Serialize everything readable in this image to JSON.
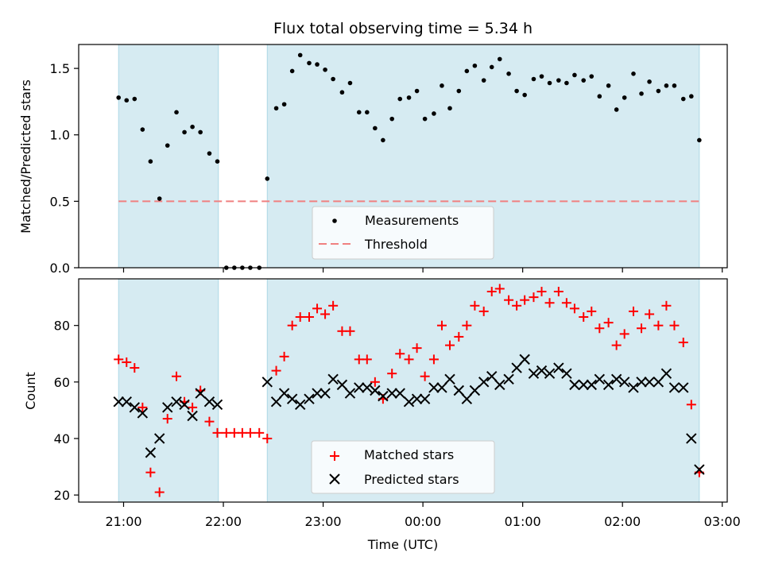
{
  "figure": {
    "title": "Flux total observing time = 5.34 h",
    "xlabel": "Time (UTC)",
    "xtick_labels": [
      "21:00",
      "22:00",
      "23:00",
      "00:00",
      "01:00",
      "02:00",
      "03:00"
    ],
    "colors": {
      "observing_shade": "#add8e6",
      "threshold": "#f08080",
      "matched": "#ff0000",
      "predicted": "#000000",
      "measurements": "#000000"
    }
  },
  "chart_data": [
    {
      "type": "scatter",
      "ylabel": "Matched/Predicted stars",
      "ylim": [
        0,
        1.68
      ],
      "ytick_labels": [
        "0.0",
        "0.5",
        "1.0",
        "1.5"
      ],
      "xlim_hours": [
        20.55,
        27.05
      ],
      "x_axis_note": "hours since 00:00 on first night; 24 = 00:00 next day",
      "shaded_intervals_hours": [
        [
          20.95,
          21.95
        ],
        [
          22.44,
          26.77
        ]
      ],
      "legend_position": "lower-center",
      "threshold": {
        "name": "Threshold",
        "value": 0.5,
        "style": "dashed"
      },
      "series": [
        {
          "name": "Measurements",
          "marker": "dot",
          "x": [
            20.95,
            21.03,
            21.11,
            21.19,
            21.27,
            21.36,
            21.44,
            21.53,
            21.61,
            21.69,
            21.77,
            21.86,
            21.94,
            22.03,
            22.11,
            22.19,
            22.27,
            22.36,
            22.44,
            22.53,
            22.61,
            22.69,
            22.77,
            22.86,
            22.94,
            23.02,
            23.1,
            23.19,
            23.27,
            23.36,
            23.44,
            23.52,
            23.6,
            23.69,
            23.77,
            23.86,
            23.94,
            24.02,
            24.11,
            24.19,
            24.27,
            24.36,
            24.44,
            24.52,
            24.61,
            24.69,
            24.77,
            24.86,
            24.94,
            25.02,
            25.11,
            25.19,
            25.27,
            25.36,
            25.44,
            25.52,
            25.61,
            25.69,
            25.77,
            25.86,
            25.94,
            26.02,
            26.11,
            26.19,
            26.27,
            26.36,
            26.44,
            26.52,
            26.61,
            26.69,
            26.77
          ],
          "y": [
            1.28,
            1.26,
            1.27,
            1.04,
            0.8,
            0.52,
            0.92,
            1.17,
            1.02,
            1.06,
            1.02,
            0.86,
            0.8,
            0.0,
            0.0,
            0.0,
            0.0,
            0.0,
            0.67,
            1.2,
            1.23,
            1.48,
            1.6,
            1.54,
            1.53,
            1.49,
            1.42,
            1.32,
            1.39,
            1.17,
            1.17,
            1.05,
            0.96,
            1.12,
            1.27,
            1.28,
            1.33,
            1.12,
            1.16,
            1.37,
            1.2,
            1.33,
            1.48,
            1.52,
            1.41,
            1.51,
            1.57,
            1.46,
            1.33,
            1.3,
            1.42,
            1.44,
            1.39,
            1.41,
            1.39,
            1.45,
            1.41,
            1.44,
            1.29,
            1.37,
            1.19,
            1.28,
            1.46,
            1.31,
            1.4,
            1.33,
            1.37,
            1.37,
            1.27,
            1.29,
            0.96
          ]
        }
      ]
    },
    {
      "type": "scatter",
      "ylabel": "Count",
      "ylim": [
        17.5,
        96.5
      ],
      "ytick_labels": [
        "20",
        "40",
        "60",
        "80"
      ],
      "xlim_hours": [
        20.55,
        27.05
      ],
      "shaded_intervals_hours": [
        [
          20.95,
          21.95
        ],
        [
          22.44,
          26.77
        ]
      ],
      "legend_position": "lower-center",
      "series": [
        {
          "name": "Matched stars",
          "marker": "plus",
          "x": [
            20.95,
            21.03,
            21.11,
            21.19,
            21.27,
            21.36,
            21.44,
            21.53,
            21.61,
            21.69,
            21.77,
            21.86,
            21.94,
            22.03,
            22.11,
            22.19,
            22.27,
            22.36,
            22.44,
            22.53,
            22.61,
            22.69,
            22.77,
            22.86,
            22.94,
            23.02,
            23.1,
            23.19,
            23.27,
            23.36,
            23.44,
            23.52,
            23.6,
            23.69,
            23.77,
            23.86,
            23.94,
            24.02,
            24.11,
            24.19,
            24.27,
            24.36,
            24.44,
            24.52,
            24.61,
            24.69,
            24.77,
            24.86,
            24.94,
            25.02,
            25.11,
            25.19,
            25.27,
            25.36,
            25.44,
            25.52,
            25.61,
            25.69,
            25.77,
            25.86,
            25.94,
            26.02,
            26.11,
            26.19,
            26.27,
            26.36,
            26.44,
            26.52,
            26.61,
            26.69,
            26.77
          ],
          "y": [
            68,
            67,
            65,
            51,
            28,
            21,
            47,
            62,
            53,
            51,
            57,
            46,
            42,
            42,
            42,
            42,
            42,
            42,
            40,
            64,
            69,
            80,
            83,
            83,
            86,
            84,
            87,
            78,
            78,
            68,
            68,
            60,
            54,
            63,
            70,
            68,
            72,
            62,
            68,
            80,
            73,
            76,
            80,
            87,
            85,
            92,
            93,
            89,
            87,
            89,
            90,
            92,
            88,
            92,
            88,
            86,
            83,
            85,
            79,
            81,
            73,
            77,
            85,
            79,
            84,
            80,
            87,
            80,
            74,
            52,
            28
          ]
        },
        {
          "name": "Predicted stars",
          "marker": "x",
          "x": [
            20.95,
            21.03,
            21.11,
            21.19,
            21.27,
            21.36,
            21.44,
            21.53,
            21.61,
            21.69,
            21.77,
            21.86,
            21.94,
            22.44,
            22.53,
            22.61,
            22.69,
            22.77,
            22.86,
            22.94,
            23.02,
            23.1,
            23.19,
            23.27,
            23.36,
            23.44,
            23.52,
            23.6,
            23.69,
            23.77,
            23.86,
            23.94,
            24.02,
            24.11,
            24.19,
            24.27,
            24.36,
            24.44,
            24.52,
            24.61,
            24.69,
            24.77,
            24.86,
            24.94,
            25.02,
            25.11,
            25.19,
            25.27,
            25.36,
            25.44,
            25.52,
            25.61,
            25.69,
            25.77,
            25.86,
            25.94,
            26.02,
            26.11,
            26.19,
            26.27,
            26.36,
            26.44,
            26.52,
            26.61,
            26.69,
            26.77
          ],
          "y": [
            53,
            53,
            51,
            49,
            35,
            40,
            51,
            53,
            52,
            48,
            56,
            53,
            52,
            60,
            53,
            56,
            54,
            52,
            54,
            56,
            56,
            61,
            59,
            56,
            58,
            58,
            57,
            55,
            56,
            56,
            53,
            54,
            54,
            58,
            58,
            61,
            57,
            54,
            57,
            60,
            62,
            59,
            61,
            65,
            68,
            63,
            64,
            63,
            65,
            63,
            59,
            59,
            59,
            61,
            59,
            61,
            60,
            58,
            60,
            60,
            60,
            63,
            58,
            58,
            40,
            29
          ]
        }
      ]
    }
  ]
}
